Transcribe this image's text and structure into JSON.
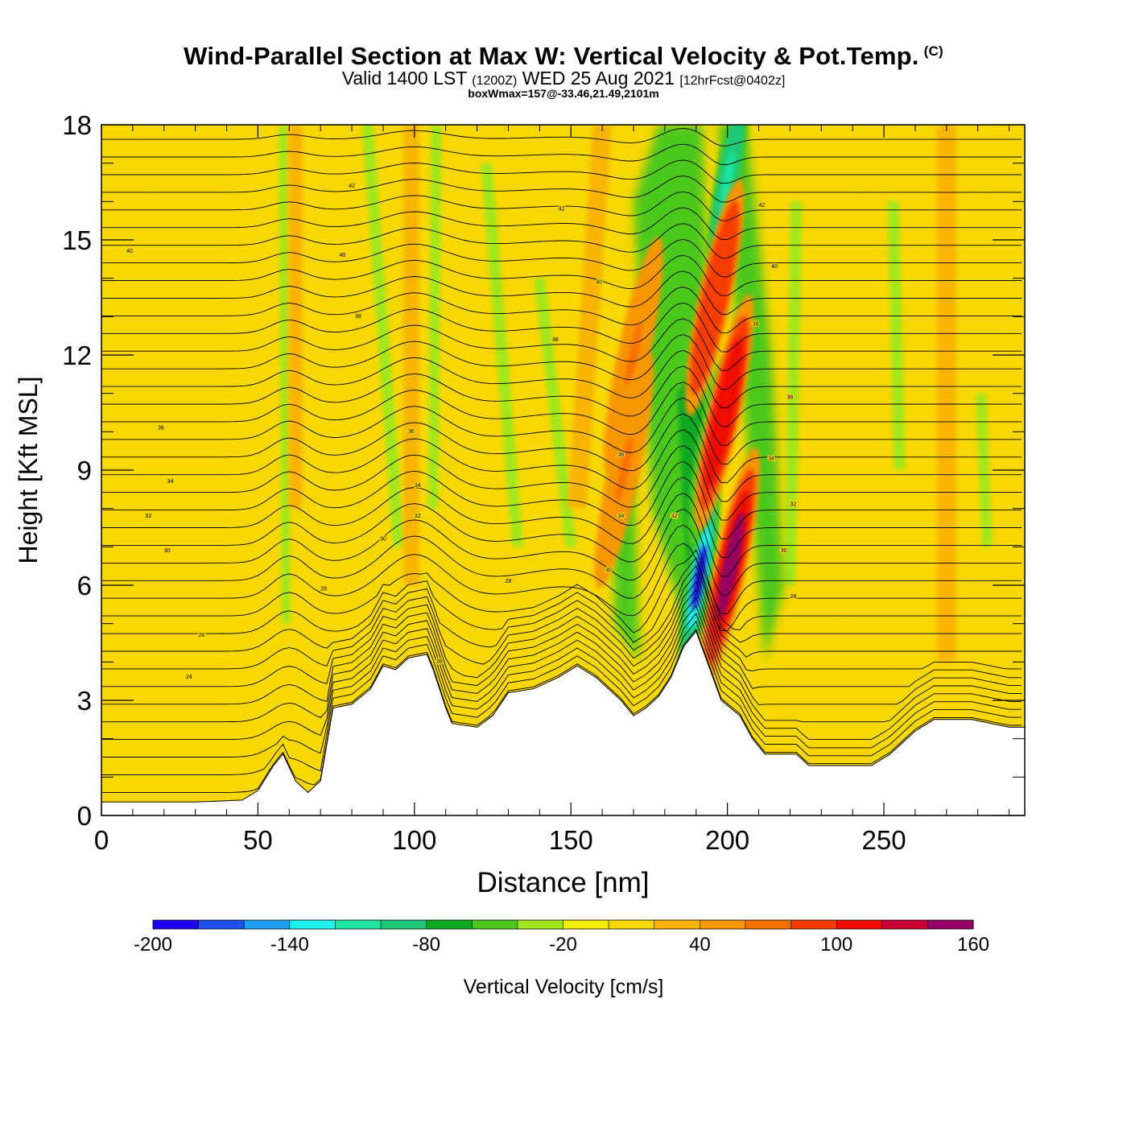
{
  "header": {
    "title": "Wind-Parallel Section at Max W: Vertical Velocity & Pot.Temp.",
    "copyright_mark": "(C)",
    "valid_prefix": "Valid 1400 LST",
    "valid_utc": "(1200Z)",
    "valid_date": "WED 25 Aug 2021",
    "forecast": "[12hrFcst@0402z]",
    "box_info": "boxWmax=157@-33.46,21.49,2101m"
  },
  "chart_data": {
    "type": "heatmap",
    "title": "Wind-Parallel Section at Max W: Vertical Velocity & Pot.Temp.",
    "xlabel": "Distance [nm]",
    "ylabel": "Height [Kft MSL]",
    "xlim": [
      0,
      295
    ],
    "ylim": [
      0,
      18
    ],
    "xticks": [
      0,
      50,
      100,
      150,
      200,
      250
    ],
    "yticks": [
      0,
      3,
      6,
      9,
      12,
      15,
      18
    ],
    "colorbar": {
      "label": "Vertical Velocity [cm/s]",
      "min": -200,
      "max": 160,
      "step": 20,
      "tick_labels": [
        "-200",
        "-140",
        "-80",
        "-20",
        "40",
        "100",
        "160"
      ],
      "colors": [
        "#1e00f0",
        "#1e50f0",
        "#1ea0f0",
        "#1ef0f0",
        "#1ee6a0",
        "#1ec878",
        "#10a820",
        "#4cc81e",
        "#a0e61e",
        "#f0f000",
        "#f8d800",
        "#f8b400",
        "#f89600",
        "#f87000",
        "#f83c00",
        "#f00a00",
        "#c80032",
        "#960064"
      ]
    },
    "terrain_kft": [
      [
        0,
        0.35
      ],
      [
        20,
        0.35
      ],
      [
        30,
        0.35
      ],
      [
        45,
        0.4
      ],
      [
        50,
        0.65
      ],
      [
        55,
        1.3
      ],
      [
        58,
        1.6
      ],
      [
        62,
        0.9
      ],
      [
        66,
        0.6
      ],
      [
        70,
        0.9
      ],
      [
        74,
        2.8
      ],
      [
        80,
        2.9
      ],
      [
        86,
        3.3
      ],
      [
        90,
        3.9
      ],
      [
        94,
        3.8
      ],
      [
        98,
        4.1
      ],
      [
        104,
        4.2
      ],
      [
        106,
        3.8
      ],
      [
        110,
        2.8
      ],
      [
        112,
        2.4
      ],
      [
        120,
        2.3
      ],
      [
        125,
        2.6
      ],
      [
        130,
        3.2
      ],
      [
        138,
        3.3
      ],
      [
        146,
        3.6
      ],
      [
        152,
        3.9
      ],
      [
        158,
        3.6
      ],
      [
        162,
        3.3
      ],
      [
        166,
        3.0
      ],
      [
        170,
        2.6
      ],
      [
        174,
        2.8
      ],
      [
        178,
        3.1
      ],
      [
        182,
        3.6
      ],
      [
        186,
        4.4
      ],
      [
        190,
        4.8
      ],
      [
        194,
        3.9
      ],
      [
        198,
        3.0
      ],
      [
        204,
        2.6
      ],
      [
        208,
        2.0
      ],
      [
        212,
        1.6
      ],
      [
        222,
        1.6
      ],
      [
        226,
        1.3
      ],
      [
        238,
        1.3
      ],
      [
        246,
        1.3
      ],
      [
        252,
        1.6
      ],
      [
        260,
        2.2
      ],
      [
        266,
        2.5
      ],
      [
        278,
        2.5
      ],
      [
        290,
        2.3
      ],
      [
        295,
        2.3
      ]
    ],
    "updraft_cores": [
      {
        "x": 201,
        "z": 6.5,
        "w": 157
      },
      {
        "x": 199,
        "z": 10.5,
        "w": 110
      },
      {
        "x": 196,
        "z": 13.5,
        "w": 95
      },
      {
        "x": 170,
        "z": 12.0,
        "w": 75
      },
      {
        "x": 167,
        "z": 9.0,
        "w": 60
      }
    ],
    "downdraft_cores": [
      {
        "x": 191,
        "z": 6.2,
        "w": -190
      },
      {
        "x": 194,
        "z": 9.5,
        "w": -90
      },
      {
        "x": 200,
        "z": 16.5,
        "w": -110
      }
    ],
    "theta_contour_labels": [
      {
        "text": "42",
        "x": 80,
        "z": 16.4
      },
      {
        "text": "42",
        "x": 147,
        "z": 15.8
      },
      {
        "text": "42",
        "x": 211,
        "z": 15.9
      },
      {
        "text": "40",
        "x": 9,
        "z": 14.7
      },
      {
        "text": "40",
        "x": 77,
        "z": 14.6
      },
      {
        "text": "40",
        "x": 159,
        "z": 13.9
      },
      {
        "text": "40",
        "x": 215,
        "z": 14.3
      },
      {
        "text": "38",
        "x": 82,
        "z": 13.0
      },
      {
        "text": "38",
        "x": 145,
        "z": 12.4
      },
      {
        "text": "38",
        "x": 209,
        "z": 12.8
      },
      {
        "text": "36",
        "x": 19,
        "z": 10.1
      },
      {
        "text": "36",
        "x": 99,
        "z": 10.0
      },
      {
        "text": "36",
        "x": 166,
        "z": 9.4
      },
      {
        "text": "36",
        "x": 220,
        "z": 10.9
      },
      {
        "text": "34",
        "x": 22,
        "z": 8.7
      },
      {
        "text": "34",
        "x": 101,
        "z": 8.6
      },
      {
        "text": "34",
        "x": 166,
        "z": 7.8
      },
      {
        "text": "34",
        "x": 214,
        "z": 9.3
      },
      {
        "text": "32",
        "x": 15,
        "z": 7.8
      },
      {
        "text": "32",
        "x": 101,
        "z": 7.8
      },
      {
        "text": "32",
        "x": 183,
        "z": 7.8
      },
      {
        "text": "32",
        "x": 221,
        "z": 8.1
      },
      {
        "text": "30",
        "x": 21,
        "z": 6.9
      },
      {
        "text": "30",
        "x": 90,
        "z": 7.2
      },
      {
        "text": "30",
        "x": 162,
        "z": 6.4
      },
      {
        "text": "30",
        "x": 218,
        "z": 6.9
      },
      {
        "text": "28",
        "x": 71,
        "z": 5.9
      },
      {
        "text": "28",
        "x": 130,
        "z": 6.1
      },
      {
        "text": "28",
        "x": 221,
        "z": 5.7
      },
      {
        "text": "26",
        "x": 32,
        "z": 4.7
      },
      {
        "text": "26",
        "x": 108,
        "z": 4.0
      },
      {
        "text": "24",
        "x": 28,
        "z": 3.6
      }
    ]
  }
}
